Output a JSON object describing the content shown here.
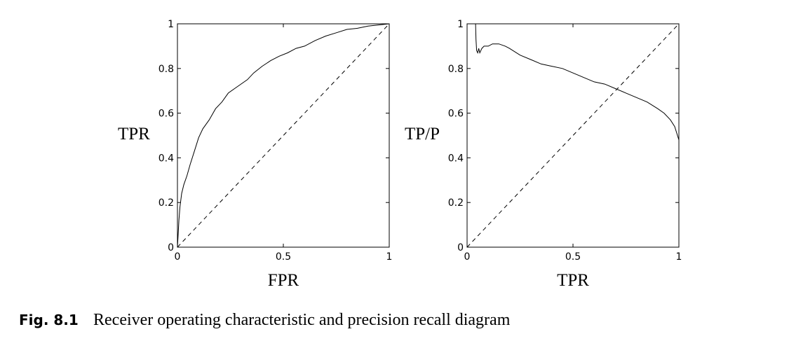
{
  "chart_data": [
    {
      "type": "line",
      "xlabel": "FPR",
      "ylabel": "TPR",
      "xlim": [
        0,
        1
      ],
      "ylim": [
        0,
        1
      ],
      "x_ticks": [
        "0",
        "0.5",
        "1"
      ],
      "y_ticks": [
        "0",
        "0.2",
        "0.4",
        "0.6",
        "0.8",
        "1"
      ],
      "grid": false,
      "series": [
        {
          "style": "solid",
          "x": [
            0,
            0.003,
            0.007,
            0.012,
            0.02,
            0.03,
            0.045,
            0.06,
            0.08,
            0.1,
            0.12,
            0.15,
            0.18,
            0.21,
            0.24,
            0.27,
            0.3,
            0.33,
            0.36,
            0.4,
            0.44,
            0.48,
            0.52,
            0.56,
            0.6,
            0.65,
            0.7,
            0.75,
            0.8,
            0.85,
            0.9,
            0.95,
            1.0
          ],
          "y": [
            0,
            0.05,
            0.12,
            0.18,
            0.24,
            0.28,
            0.32,
            0.37,
            0.43,
            0.49,
            0.53,
            0.57,
            0.62,
            0.65,
            0.69,
            0.71,
            0.73,
            0.75,
            0.78,
            0.81,
            0.835,
            0.855,
            0.87,
            0.89,
            0.9,
            0.925,
            0.945,
            0.96,
            0.975,
            0.98,
            0.99,
            0.995,
            1.0
          ]
        },
        {
          "style": "dashed",
          "x": [
            0,
            1
          ],
          "y": [
            0,
            1
          ]
        }
      ]
    },
    {
      "type": "line",
      "xlabel": "TPR",
      "ylabel": "TP/P",
      "xlim": [
        0,
        1
      ],
      "ylim": [
        0,
        1
      ],
      "x_ticks": [
        "0",
        "0.5",
        "1"
      ],
      "y_ticks": [
        "0",
        "0.2",
        "0.4",
        "0.6",
        "0.8",
        "1"
      ],
      "grid": false,
      "series": [
        {
          "style": "solid",
          "x": [
            0.04,
            0.042,
            0.045,
            0.05,
            0.055,
            0.06,
            0.07,
            0.08,
            0.1,
            0.12,
            0.15,
            0.18,
            0.2,
            0.25,
            0.3,
            0.35,
            0.4,
            0.45,
            0.5,
            0.55,
            0.6,
            0.65,
            0.7,
            0.75,
            0.8,
            0.85,
            0.9,
            0.93,
            0.96,
            0.98,
            1.0
          ],
          "y": [
            1.0,
            0.93,
            0.88,
            0.87,
            0.89,
            0.87,
            0.89,
            0.9,
            0.9,
            0.91,
            0.91,
            0.9,
            0.89,
            0.86,
            0.84,
            0.82,
            0.81,
            0.8,
            0.78,
            0.76,
            0.74,
            0.73,
            0.71,
            0.69,
            0.67,
            0.65,
            0.62,
            0.6,
            0.57,
            0.54,
            0.48
          ]
        },
        {
          "style": "dashed",
          "x": [
            0,
            1
          ],
          "y": [
            0,
            1
          ]
        }
      ]
    }
  ],
  "caption": {
    "label": "Fig. 8.1",
    "text": "Receiver operating characteristic and precision recall diagram"
  }
}
